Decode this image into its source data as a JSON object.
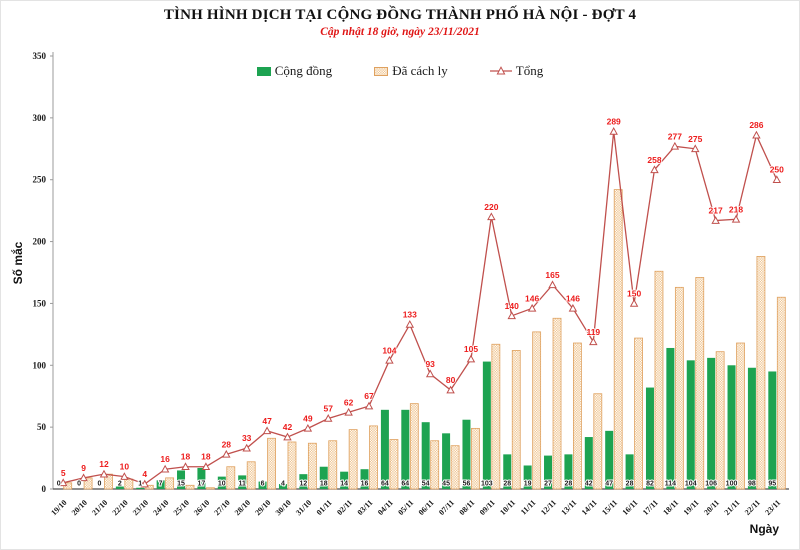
{
  "header": {
    "title": "TÌNH HÌNH DỊCH TẠI CỘNG ĐỒNG THÀNH PHỐ HÀ NỘI - ĐỢT 4",
    "subtitle": "Cập nhật 18 giờ, ngày 23/11/2021"
  },
  "chart_data": {
    "type": "bar+line combo",
    "title": "TÌNH HÌNH DỊCH TẠI CỘNG ĐỒNG THÀNH PHỐ HÀ NỘI - ĐỢT 4",
    "subtitle": "Cập nhật 18 giờ, ngày 23/11/2021",
    "xlabel": "Ngày",
    "ylabel": "Số mắc",
    "ylim": [
      0,
      350
    ],
    "yticks": [
      0,
      50,
      100,
      150,
      200,
      250,
      300,
      350
    ],
    "grid": false,
    "legend_position": "top-center",
    "categories": [
      "19/10",
      "20/10",
      "21/10",
      "22/10",
      "23/10",
      "24/10",
      "25/10",
      "26/10",
      "27/10",
      "28/10",
      "29/10",
      "30/10",
      "31/10",
      "01/11",
      "02/11",
      "03/11",
      "04/11",
      "05/11",
      "06/11",
      "07/11",
      "08/11",
      "09/11",
      "10/11",
      "11/11",
      "12/11",
      "13/11",
      "14/11",
      "15/11",
      "16/11",
      "17/11",
      "18/11",
      "19/11",
      "20/11",
      "21/11",
      "22/11",
      "23/11"
    ],
    "series": [
      {
        "name": "Cộng đồng",
        "type": "bar",
        "color": "#1da351",
        "data_labels_shown": true,
        "values": [
          0,
          0,
          0,
          2,
          1,
          7,
          15,
          17,
          10,
          11,
          6,
          4,
          12,
          18,
          14,
          16,
          64,
          64,
          54,
          45,
          56,
          103,
          28,
          19,
          27,
          28,
          42,
          47,
          28,
          82,
          114,
          104,
          106,
          100,
          98,
          95
        ]
      },
      {
        "name": "Đã cách ly",
        "type": "bar",
        "color": "#f2cc9e",
        "border_color": "#dfa15f",
        "pattern": "dotted-white",
        "data_labels_shown": false,
        "values": [
          5,
          9,
          12,
          8,
          3,
          9,
          3,
          1,
          18,
          22,
          41,
          38,
          37,
          39,
          48,
          51,
          40,
          69,
          39,
          35,
          49,
          117,
          112,
          127,
          138,
          118,
          77,
          242,
          122,
          176,
          163,
          171,
          111,
          118,
          188,
          155
        ]
      },
      {
        "name": "Tổng",
        "type": "line",
        "color": "#c0504d",
        "marker": "open-triangle-up",
        "data_label_color": "#ed1c1c",
        "data_labels_shown": true,
        "values": [
          5,
          9,
          12,
          10,
          4,
          16,
          18,
          18,
          28,
          33,
          47,
          42,
          49,
          57,
          62,
          67,
          104,
          133,
          93,
          80,
          105,
          220,
          140,
          146,
          165,
          146,
          119,
          289,
          150,
          258,
          277,
          275,
          217,
          218,
          286,
          250
        ]
      }
    ]
  }
}
